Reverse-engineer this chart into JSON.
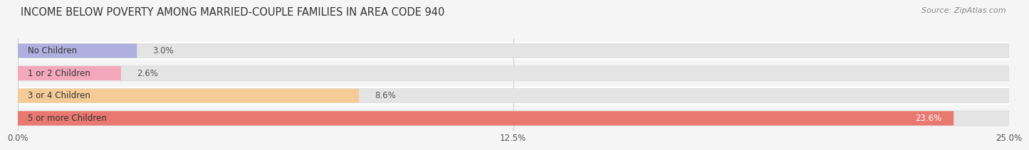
{
  "title": "INCOME BELOW POVERTY AMONG MARRIED-COUPLE FAMILIES IN AREA CODE 940",
  "source": "Source: ZipAtlas.com",
  "categories": [
    "No Children",
    "1 or 2 Children",
    "3 or 4 Children",
    "5 or more Children"
  ],
  "values": [
    3.0,
    2.6,
    8.6,
    23.6
  ],
  "bar_colors": [
    "#b0b0e0",
    "#f4a8bc",
    "#f5cc98",
    "#e87870"
  ],
  "row_bg_colors": [
    "#ffffff",
    "#f0f0f0",
    "#ffffff",
    "#f0f0f0"
  ],
  "xlim": [
    0,
    25.0
  ],
  "xticks": [
    0.0,
    12.5,
    25.0
  ],
  "xtick_labels": [
    "0.0%",
    "12.5%",
    "25.0%"
  ],
  "background_color": "#f5f5f5",
  "pill_bg_color": "#e4e4e4",
  "title_fontsize": 10.5,
  "label_fontsize": 8.5,
  "value_fontsize": 8.5,
  "source_fontsize": 8,
  "bar_height": 0.62,
  "value_inside_color": "#ffffff",
  "value_outside_color": "#555555",
  "value_inside_threshold": 15.0
}
